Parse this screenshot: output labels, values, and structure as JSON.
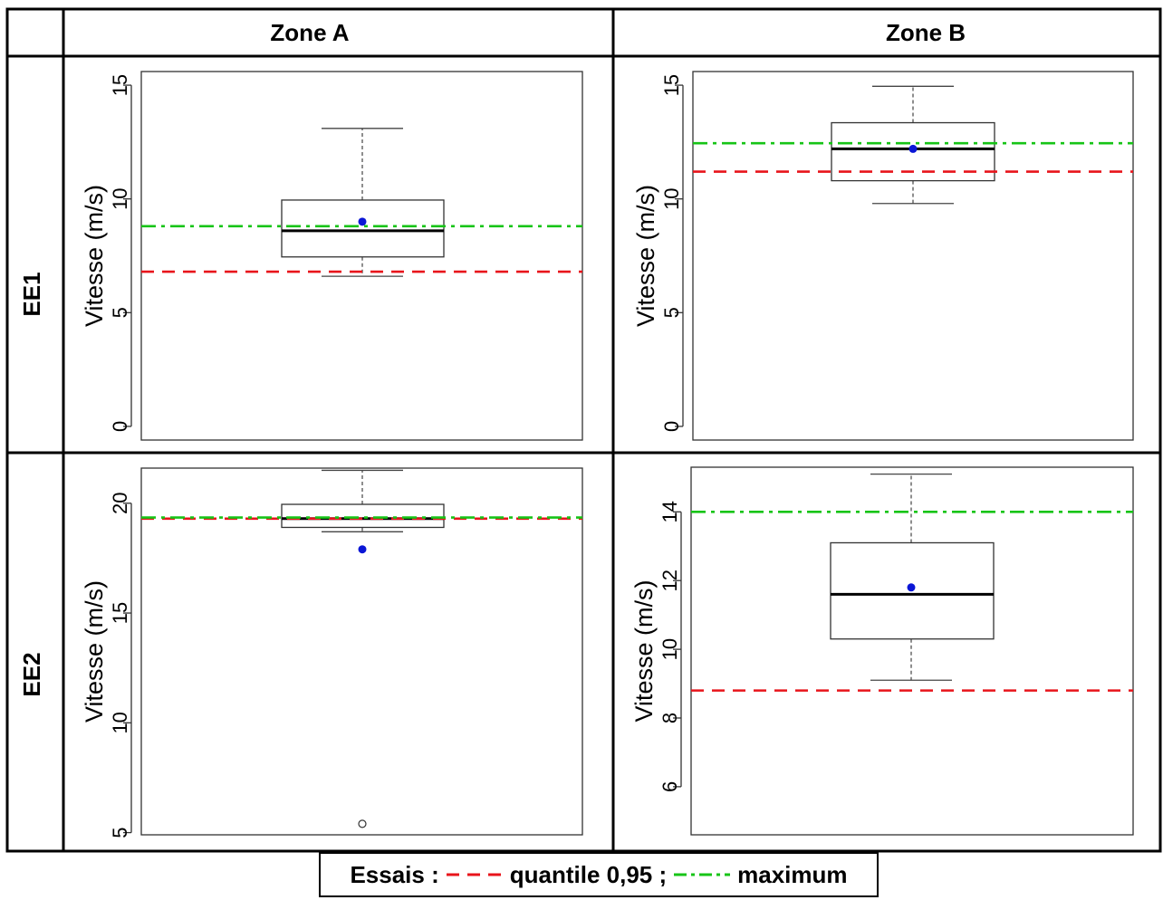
{
  "table": {
    "col_headers": [
      "Zone A",
      "Zone B"
    ],
    "row_headers": [
      "EE1",
      "EE2"
    ]
  },
  "legend": {
    "prefix": "Essais :",
    "items": [
      {
        "label": "quantile 0,95 ;",
        "color": "#e8141b",
        "style": "dashed"
      },
      {
        "label": "maximum",
        "color": "#17c417",
        "style": "dashdot"
      }
    ]
  },
  "colors": {
    "quantile": "#e8141b",
    "maximum": "#17c417",
    "mean_point": "#0a16d6",
    "box": "#333333"
  },
  "chart_data": [
    {
      "type": "boxplot",
      "panel": "EE1 / Zone A",
      "ylabel": "Vitesse (m/s)",
      "ylim": [
        -0.6,
        15.6
      ],
      "yticks": [
        0,
        5,
        10,
        15
      ],
      "box": {
        "whisker_low": 6.6,
        "q1": 7.45,
        "median": 8.6,
        "q3": 9.95,
        "whisker_high": 13.1
      },
      "mean": 9.0,
      "outliers": [],
      "quantile_095": 6.8,
      "maximum": 8.8
    },
    {
      "type": "boxplot",
      "panel": "EE1 / Zone B",
      "ylabel": "Vitesse (m/s)",
      "ylim": [
        -0.6,
        15.6
      ],
      "yticks": [
        0,
        5,
        10,
        15
      ],
      "box": {
        "whisker_low": 9.8,
        "q1": 10.8,
        "median": 12.2,
        "q3": 13.35,
        "whisker_high": 14.95
      },
      "mean": 12.2,
      "outliers": [],
      "quantile_095": 11.2,
      "maximum": 12.45
    },
    {
      "type": "boxplot",
      "panel": "EE2 / Zone A",
      "ylabel": "Vitesse (m/s)",
      "ylim": [
        4.9,
        21.6
      ],
      "yticks": [
        5,
        10,
        15,
        20
      ],
      "box": {
        "whisker_low": 18.7,
        "q1": 18.9,
        "median": 19.3,
        "q3": 19.95,
        "whisker_high": 21.5
      },
      "mean": 17.9,
      "outliers": [
        5.4
      ],
      "quantile_095": 19.3,
      "maximum": 19.35
    },
    {
      "type": "boxplot",
      "panel": "EE2 / Zone B",
      "ylabel": "Vitesse (m/s)",
      "ylim": [
        4.6,
        15.3
      ],
      "yticks": [
        6,
        8,
        10,
        12,
        14
      ],
      "box": {
        "whisker_low": 9.1,
        "q1": 10.3,
        "median": 11.6,
        "q3": 13.1,
        "whisker_high": 15.1
      },
      "mean": 11.8,
      "outliers": [],
      "quantile_095": 8.8,
      "maximum": 14.0
    }
  ]
}
